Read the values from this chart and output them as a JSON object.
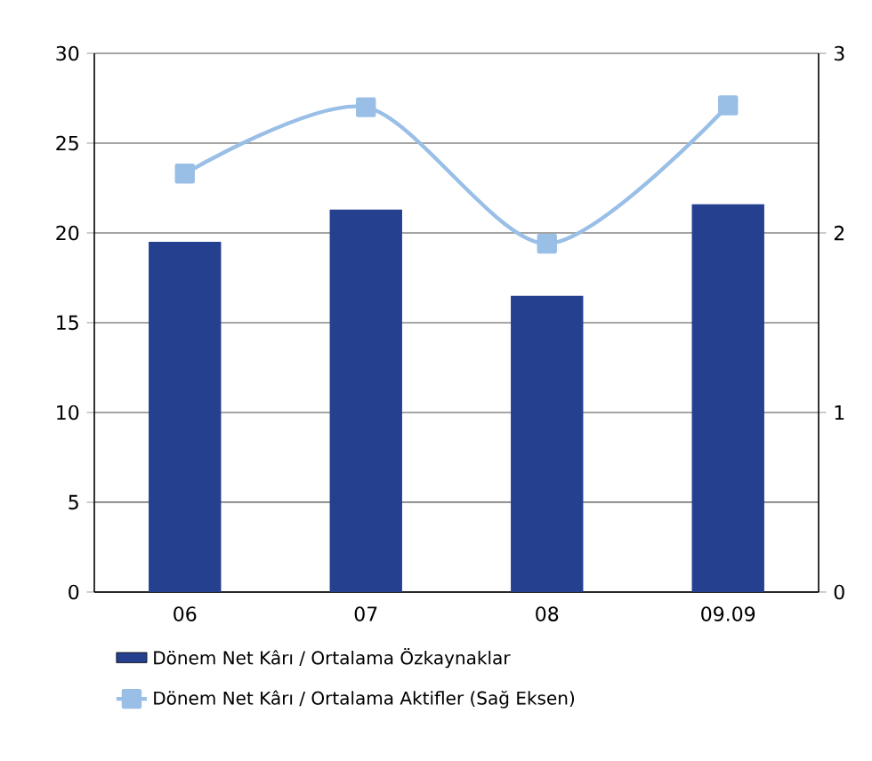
{
  "chart_data": {
    "type": "bar",
    "categories": [
      "06",
      "07",
      "08",
      "09.09"
    ],
    "series": [
      {
        "name": "Dönem Net Kârı / Ortalama Özkaynaklar",
        "color": "#25408f",
        "values": [
          19.5,
          21.3,
          16.5,
          21.6
        ]
      },
      {
        "name": "Dönem Net Kârı  / Ortalama Aktifler (Sağ Eksen)",
        "type": "line",
        "axis": "y2",
        "color": "#99bfe6",
        "marker": "square",
        "line_style": "solid",
        "values": [
          2.33,
          2.7,
          1.94,
          2.71
        ]
      }
    ],
    "ylim": [
      0,
      30
    ],
    "yticks": [
      0,
      5,
      10,
      15,
      20,
      25,
      30
    ],
    "y2lim": [
      0,
      3
    ],
    "y2ticks": [
      0,
      1,
      2,
      3
    ],
    "grid": "y",
    "legend": "bottom"
  }
}
